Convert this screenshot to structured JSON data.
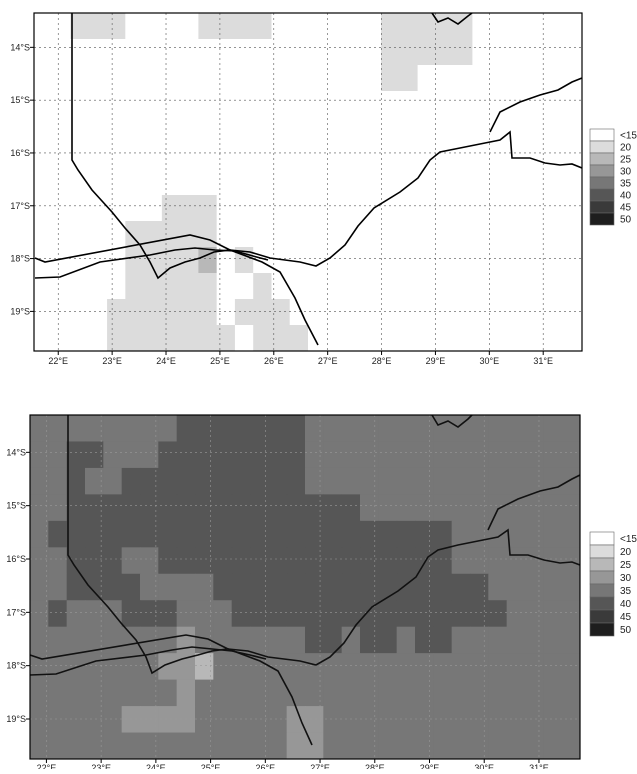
{
  "legend": {
    "levels": [
      "<15",
      "20",
      "25",
      "30",
      "35",
      "40",
      "45",
      "50"
    ],
    "colors": [
      "#ffffff",
      "#dcdcdc",
      "#b8b8b8",
      "#979797",
      "#777777",
      "#565656",
      "#3a3a3a",
      "#1e1e1e"
    ]
  },
  "longitude_labels": [
    "22°E",
    "23°E",
    "24°E",
    "25°E",
    "26°E",
    "27°E",
    "28°E",
    "29°E",
    "30°E",
    "31°E"
  ],
  "latitude_labels": [
    "14°S",
    "15°S",
    "16°S",
    "17°S",
    "18°S",
    "19°S"
  ],
  "maps": [
    {
      "name": "top",
      "cells": [
        [
          0,
          0,
          1,
          1,
          1,
          0,
          0,
          0,
          0,
          1,
          1,
          1,
          1,
          0,
          0,
          0,
          0,
          0,
          0,
          1,
          1,
          1,
          1,
          1,
          0,
          0,
          0,
          0,
          0,
          0
        ],
        [
          0,
          0,
          0,
          0,
          0,
          0,
          0,
          0,
          0,
          0,
          0,
          0,
          0,
          0,
          0,
          0,
          0,
          0,
          0,
          1,
          1,
          1,
          1,
          1,
          0,
          0,
          0,
          0,
          0,
          0
        ],
        [
          0,
          0,
          0,
          0,
          0,
          0,
          0,
          0,
          0,
          0,
          0,
          0,
          0,
          0,
          0,
          0,
          0,
          0,
          0,
          1,
          1,
          0,
          0,
          0,
          0,
          0,
          0,
          0,
          0,
          0
        ],
        [
          0,
          0,
          0,
          0,
          0,
          0,
          0,
          0,
          0,
          0,
          0,
          0,
          0,
          0,
          0,
          0,
          0,
          0,
          0,
          0,
          0,
          0,
          0,
          0,
          0,
          0,
          0,
          0,
          0,
          0
        ],
        [
          0,
          0,
          0,
          0,
          0,
          0,
          0,
          0,
          0,
          0,
          0,
          0,
          0,
          0,
          0,
          0,
          0,
          0,
          0,
          0,
          0,
          0,
          0,
          0,
          0,
          0,
          0,
          0,
          0,
          0
        ],
        [
          0,
          0,
          0,
          0,
          0,
          0,
          0,
          0,
          0,
          0,
          0,
          0,
          0,
          0,
          0,
          0,
          0,
          0,
          0,
          0,
          0,
          0,
          0,
          0,
          0,
          0,
          0,
          0,
          0,
          0
        ],
        [
          0,
          0,
          0,
          0,
          0,
          0,
          0,
          0,
          0,
          0,
          0,
          0,
          0,
          0,
          0,
          0,
          0,
          0,
          0,
          0,
          0,
          0,
          0,
          0,
          0,
          0,
          0,
          0,
          0,
          0
        ],
        [
          0,
          0,
          0,
          0,
          0,
          0,
          0,
          1,
          1,
          1,
          0,
          0,
          0,
          0,
          0,
          0,
          0,
          0,
          0,
          0,
          0,
          0,
          0,
          0,
          0,
          0,
          0,
          0,
          0,
          0
        ],
        [
          0,
          0,
          0,
          0,
          0,
          1,
          1,
          1,
          1,
          1,
          0,
          0,
          0,
          0,
          0,
          0,
          0,
          0,
          0,
          0,
          0,
          0,
          0,
          0,
          0,
          0,
          0,
          0,
          0,
          0
        ],
        [
          0,
          0,
          0,
          0,
          0,
          1,
          1,
          1,
          1,
          2,
          0,
          1,
          0,
          0,
          0,
          0,
          0,
          0,
          0,
          0,
          0,
          0,
          0,
          0,
          0,
          0,
          0,
          0,
          0,
          0
        ],
        [
          0,
          0,
          0,
          0,
          0,
          1,
          1,
          1,
          1,
          1,
          0,
          0,
          1,
          0,
          0,
          0,
          0,
          0,
          0,
          0,
          0,
          0,
          0,
          0,
          0,
          0,
          0,
          0,
          0,
          0
        ],
        [
          0,
          0,
          0,
          0,
          1,
          1,
          1,
          1,
          1,
          1,
          0,
          1,
          1,
          1,
          0,
          0,
          0,
          0,
          0,
          0,
          0,
          0,
          0,
          0,
          0,
          0,
          0,
          0,
          0,
          0
        ],
        [
          0,
          0,
          0,
          0,
          1,
          1,
          1,
          1,
          1,
          1,
          1,
          0,
          1,
          1,
          1,
          0,
          0,
          0,
          0,
          0,
          0,
          0,
          0,
          0,
          0,
          0,
          0,
          0,
          0,
          0
        ]
      ]
    },
    {
      "name": "bottom",
      "cells": [
        [
          4,
          4,
          4,
          4,
          4,
          4,
          4,
          4,
          5,
          5,
          5,
          5,
          5,
          5,
          5,
          4,
          4,
          4,
          4,
          4,
          4,
          4,
          4,
          4,
          4,
          4,
          4,
          4,
          4,
          4
        ],
        [
          4,
          4,
          5,
          5,
          4,
          4,
          4,
          5,
          5,
          5,
          5,
          5,
          5,
          5,
          5,
          4,
          4,
          4,
          4,
          4,
          4,
          4,
          4,
          4,
          4,
          4,
          4,
          4,
          4,
          4
        ],
        [
          4,
          4,
          5,
          4,
          4,
          5,
          5,
          5,
          5,
          5,
          5,
          5,
          5,
          5,
          5,
          4,
          4,
          4,
          4,
          4,
          4,
          4,
          4,
          4,
          4,
          4,
          4,
          4,
          4,
          4
        ],
        [
          4,
          4,
          5,
          5,
          5,
          5,
          5,
          5,
          5,
          5,
          5,
          5,
          5,
          5,
          5,
          5,
          5,
          5,
          4,
          4,
          4,
          4,
          4,
          4,
          4,
          4,
          4,
          4,
          4,
          4
        ],
        [
          4,
          5,
          5,
          5,
          5,
          5,
          5,
          5,
          5,
          5,
          5,
          5,
          5,
          5,
          5,
          5,
          5,
          5,
          5,
          5,
          5,
          5,
          5,
          4,
          4,
          4,
          4,
          4,
          4,
          4
        ],
        [
          4,
          4,
          5,
          5,
          5,
          4,
          4,
          5,
          5,
          5,
          5,
          5,
          5,
          5,
          5,
          5,
          5,
          5,
          5,
          5,
          5,
          5,
          5,
          4,
          4,
          4,
          4,
          4,
          4,
          4
        ],
        [
          4,
          4,
          5,
          5,
          5,
          5,
          4,
          4,
          4,
          4,
          5,
          5,
          5,
          5,
          5,
          5,
          5,
          5,
          5,
          5,
          5,
          5,
          5,
          5,
          5,
          4,
          4,
          4,
          4,
          4
        ],
        [
          4,
          5,
          4,
          4,
          4,
          5,
          5,
          5,
          4,
          4,
          4,
          5,
          5,
          5,
          5,
          5,
          5,
          5,
          5,
          5,
          5,
          5,
          5,
          5,
          5,
          5,
          4,
          4,
          4,
          4
        ],
        [
          4,
          4,
          4,
          4,
          4,
          4,
          4,
          4,
          3,
          4,
          4,
          4,
          4,
          4,
          4,
          5,
          5,
          4,
          5,
          5,
          4,
          5,
          5,
          4,
          4,
          4,
          4,
          4,
          4,
          4
        ],
        [
          4,
          4,
          4,
          4,
          4,
          4,
          4,
          3,
          3,
          2,
          4,
          4,
          4,
          4,
          4,
          4,
          4,
          4,
          4,
          4,
          4,
          4,
          4,
          4,
          4,
          4,
          4,
          4,
          4,
          4
        ],
        [
          4,
          4,
          4,
          4,
          4,
          4,
          4,
          4,
          3,
          4,
          4,
          4,
          4,
          4,
          4,
          4,
          4,
          4,
          4,
          4,
          4,
          4,
          4,
          4,
          4,
          4,
          4,
          4,
          4,
          4
        ],
        [
          4,
          4,
          4,
          4,
          4,
          3,
          3,
          3,
          3,
          4,
          4,
          4,
          4,
          4,
          3,
          3,
          4,
          4,
          4,
          4,
          4,
          4,
          4,
          4,
          4,
          4,
          4,
          4,
          4,
          4
        ],
        [
          4,
          4,
          4,
          4,
          4,
          4,
          4,
          4,
          4,
          4,
          4,
          4,
          4,
          4,
          3,
          3,
          4,
          4,
          4,
          4,
          4,
          4,
          4,
          4,
          4,
          4,
          4,
          4,
          4,
          4
        ]
      ]
    }
  ]
}
